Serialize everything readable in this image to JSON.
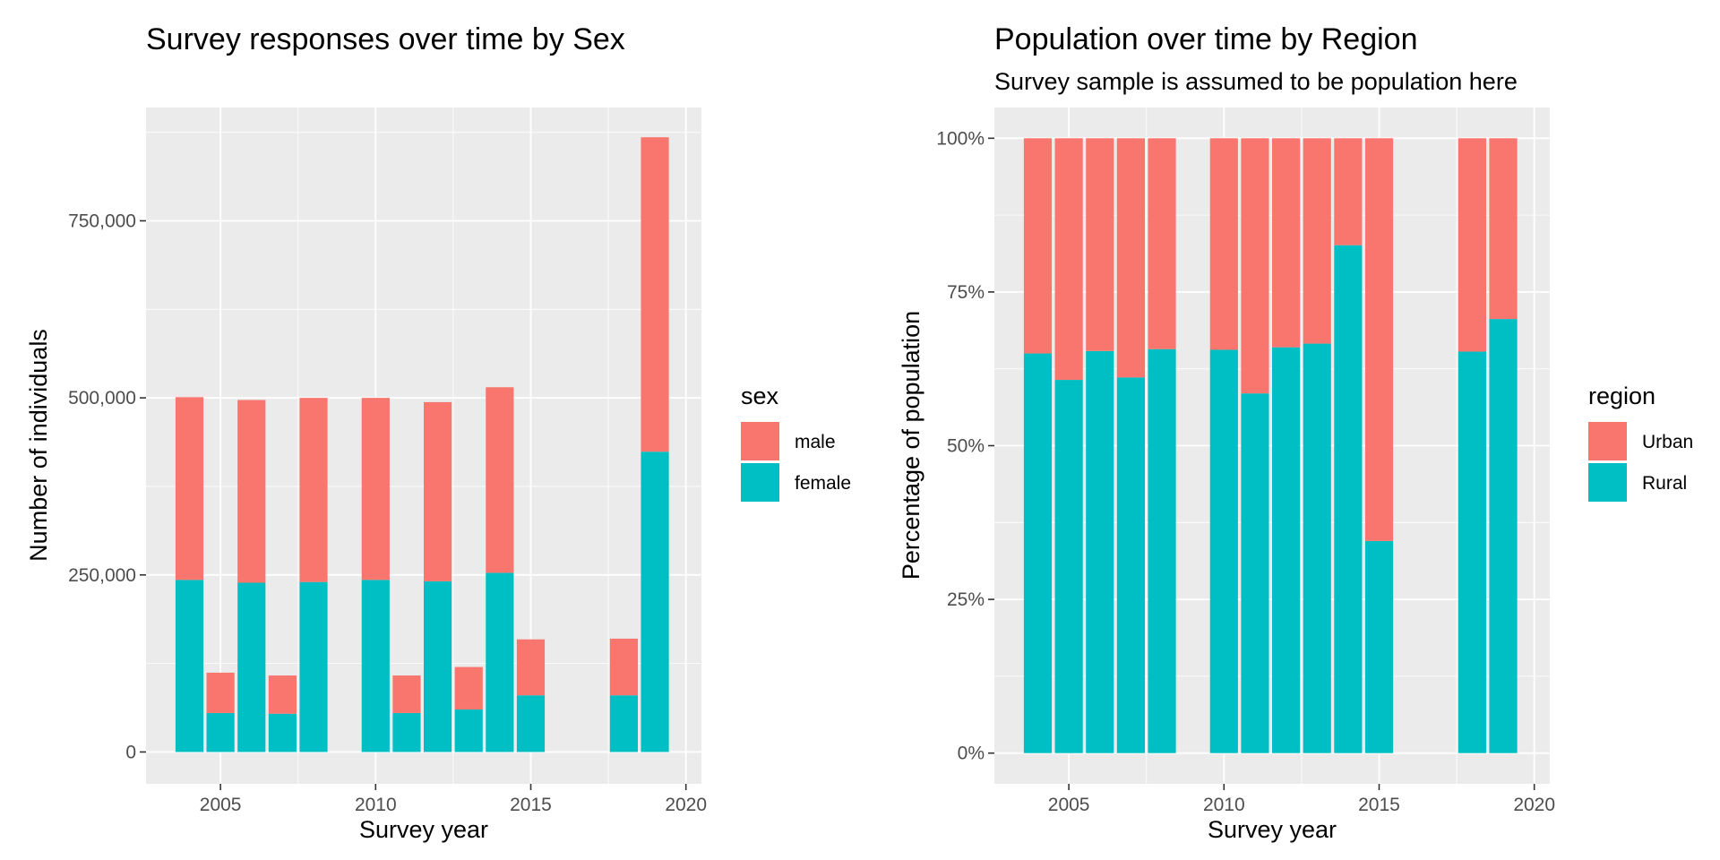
{
  "colors": {
    "male": "#F8766D",
    "female": "#00BFC4",
    "panel": "#EBEBEB",
    "grid": "#FFFFFF",
    "tick": "#333333"
  },
  "chart_data": [
    {
      "type": "bar",
      "stacked": true,
      "title": "Survey responses over time by Sex",
      "xlabel": "Survey year",
      "ylabel": "Number of individuals",
      "xlim": [
        2002.6,
        2020.5
      ],
      "ylim": [
        -45000,
        910000
      ],
      "x_ticks": [
        2005,
        2010,
        2015,
        2020
      ],
      "x_tick_labels": [
        "2005",
        "2010",
        "2015",
        "2020"
      ],
      "y_ticks": [
        0,
        250000,
        500000,
        750000
      ],
      "y_tick_labels": [
        "0",
        "250,000",
        "500,000",
        "750,000"
      ],
      "grid": true,
      "legend": {
        "title": "sex",
        "position": "right"
      },
      "x": [
        2004,
        2005,
        2006,
        2007,
        2008,
        2010,
        2011,
        2012,
        2013,
        2014,
        2015,
        2018,
        2019
      ],
      "series": [
        {
          "name": "female",
          "color": "#00BFC4",
          "values": [
            243000,
            55000,
            239000,
            54000,
            240000,
            243000,
            55000,
            241000,
            60000,
            253000,
            80000,
            80000,
            424000
          ]
        },
        {
          "name": "male",
          "color": "#F8766D",
          "values": [
            258000,
            57000,
            258000,
            54000,
            260000,
            257000,
            53000,
            253000,
            60000,
            262000,
            79000,
            80000,
            444000
          ]
        }
      ]
    },
    {
      "type": "bar",
      "stacked": true,
      "title": "Population over time by Region",
      "subtitle": "Survey sample is assumed to be population here",
      "xlabel": "Survey year",
      "ylabel": "Percentage of population",
      "xlim": [
        2002.6,
        2020.5
      ],
      "ylim": [
        -0.05,
        1.05
      ],
      "x_ticks": [
        2005,
        2010,
        2015,
        2020
      ],
      "x_tick_labels": [
        "2005",
        "2010",
        "2015",
        "2020"
      ],
      "y_ticks": [
        0,
        0.25,
        0.5,
        0.75,
        1.0
      ],
      "y_tick_labels": [
        "0%",
        "25%",
        "50%",
        "75%",
        "100%"
      ],
      "grid": true,
      "legend": {
        "title": "region",
        "position": "right"
      },
      "x": [
        2004,
        2005,
        2006,
        2007,
        2008,
        2010,
        2011,
        2012,
        2013,
        2014,
        2015,
        2018,
        2019
      ],
      "series": [
        {
          "name": "Rural",
          "color": "#00BFC4",
          "values": [
            0.65,
            0.607,
            0.654,
            0.611,
            0.657,
            0.656,
            0.585,
            0.66,
            0.666,
            0.826,
            0.345,
            0.653,
            0.706
          ]
        },
        {
          "name": "Urban",
          "color": "#F8766D",
          "values": [
            0.35,
            0.393,
            0.346,
            0.389,
            0.343,
            0.344,
            0.415,
            0.34,
            0.334,
            0.174,
            0.655,
            0.347,
            0.294
          ]
        }
      ]
    }
  ]
}
